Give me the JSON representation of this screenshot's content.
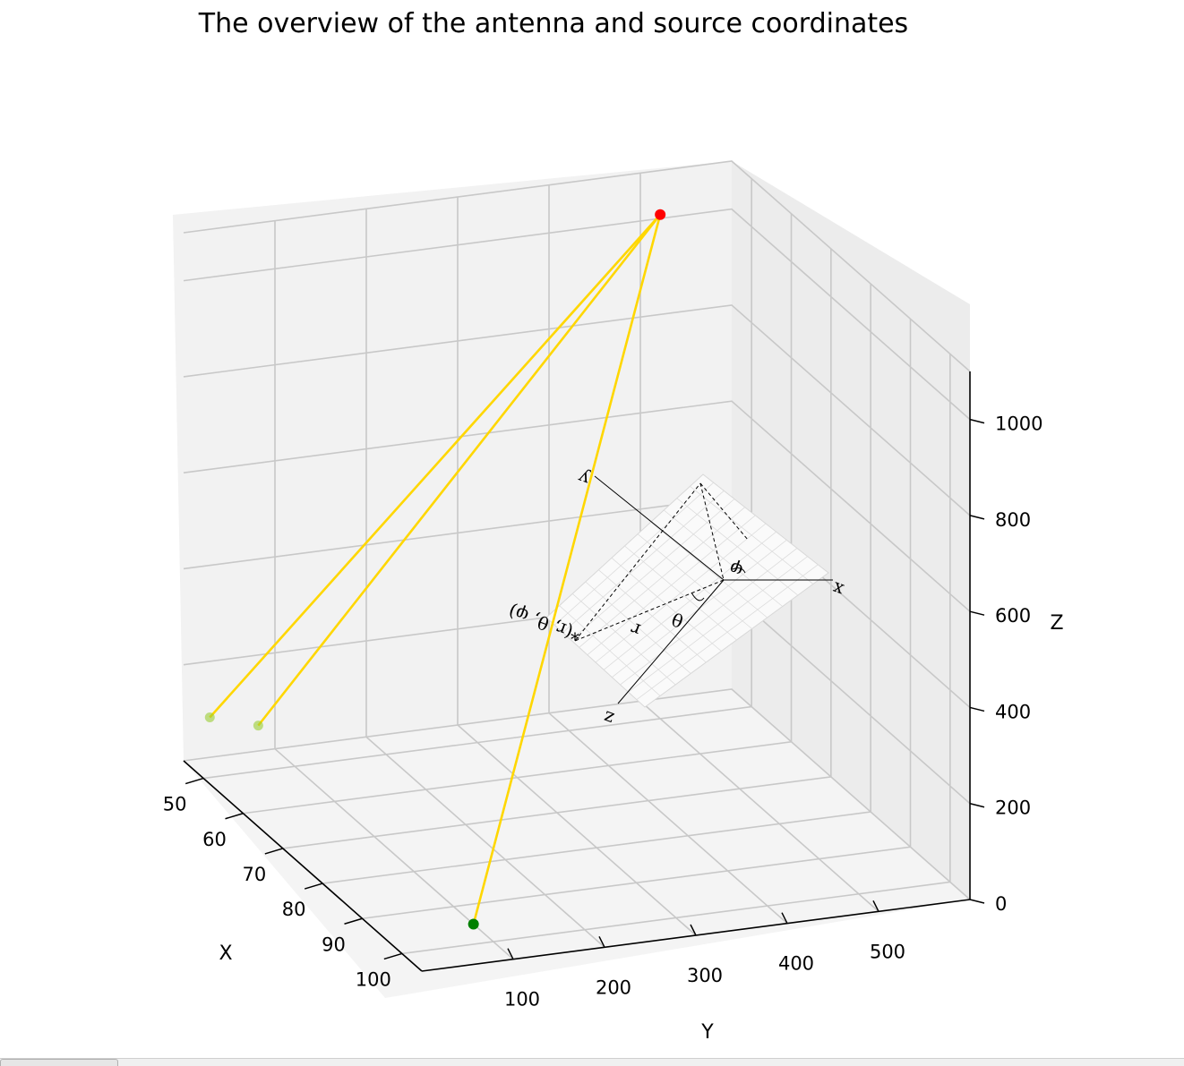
{
  "chart_data": {
    "type": "scatter3d",
    "title": "The overview of the antenna and source coordinates",
    "xlabel": "X",
    "ylabel": "Y",
    "zlabel": "Z",
    "x_ticks": [
      50,
      60,
      70,
      80,
      90,
      100
    ],
    "y_ticks": [
      100,
      200,
      300,
      400,
      500
    ],
    "z_ticks": [
      0,
      200,
      400,
      600,
      800,
      1000
    ],
    "grid": true,
    "antennas": [
      {
        "x": 47,
        "y": 20,
        "z": 100,
        "color": "#9acd32"
      },
      {
        "x": 50,
        "y": 60,
        "z": 95,
        "color": "#9acd32"
      },
      {
        "x": 95,
        "y": 100,
        "z": 0,
        "color": "#008000"
      }
    ],
    "source": {
      "x": 50,
      "y": 500,
      "z": 1050,
      "color": "#ff0000"
    },
    "line_color": "#ffd700",
    "inset": {
      "axis_labels": [
        "x",
        "y",
        "z"
      ],
      "point_label": "(r, θ, φ)",
      "r_label": "r",
      "theta_label": "θ",
      "phi_label": "φ"
    }
  }
}
